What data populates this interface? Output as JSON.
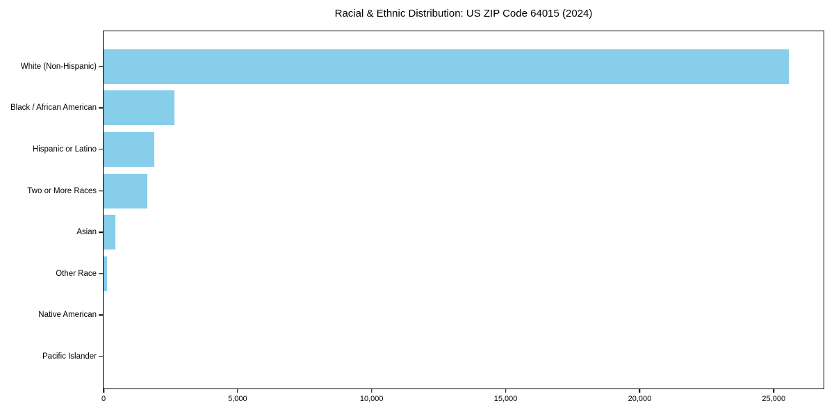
{
  "colors": {
    "bar": "#87CEEB",
    "axis": "#000000",
    "background": "#FFFFFF",
    "text": "#000000"
  },
  "chart_data": {
    "type": "bar",
    "orientation": "horizontal",
    "title": "Racial & Ethnic Distribution: US ZIP Code 64015 (2024)",
    "categories": [
      "White (Non-Hispanic)",
      "Black / African American",
      "Hispanic or Latino",
      "Two or More Races",
      "Asian",
      "Other Race",
      "Native American",
      "Pacific Islander"
    ],
    "values": [
      25570,
      2640,
      1890,
      1630,
      440,
      130,
      0,
      0
    ],
    "xlabel": "",
    "ylabel": "",
    "xlim": [
      0,
      26860
    ],
    "xticks": [
      0,
      5000,
      10000,
      15000,
      20000,
      25000
    ],
    "xtick_labels": [
      "0",
      "5,000",
      "10,000",
      "15,000",
      "20,000",
      "25,000"
    ],
    "grid": false,
    "legend": null,
    "bar_color": "#87CEEB"
  }
}
